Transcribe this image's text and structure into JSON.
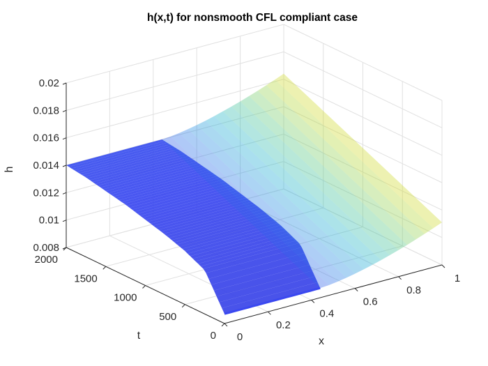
{
  "chart_data": {
    "type": "surface",
    "title": "h(x,t) for nonsmooth CFL compliant case",
    "xlabel": "x",
    "ylabel": "t",
    "zlabel": "h",
    "xlim": [
      0,
      1
    ],
    "ylim": [
      0,
      2000
    ],
    "zlim": [
      0.008,
      0.02
    ],
    "x_ticks": [
      "0",
      "0.2",
      "0.4",
      "0.6",
      "0.8",
      "1"
    ],
    "y_ticks": [
      "0",
      "500",
      "1000",
      "1500",
      "2000"
    ],
    "z_ticks": [
      "0.008",
      "0.01",
      "0.012",
      "0.014",
      "0.016",
      "0.018",
      "0.02"
    ],
    "grid": true,
    "colormap": "parula",
    "face_alpha": "semi-transparent",
    "x": [
      0,
      0.1,
      0.2,
      0.3,
      0.4,
      0.5,
      0.6,
      0.7,
      0.8,
      0.9,
      1.0
    ],
    "t": [
      0,
      250,
      500,
      750,
      1000,
      1250,
      1500,
      1750,
      2000
    ],
    "h_profile_over_t": [
      0.0087,
      0.0112,
      0.0119,
      0.0124,
      0.0128,
      0.0132,
      0.0135,
      0.0138,
      0.014
    ],
    "h_max_at_right_edge": 0.0164,
    "colors": {
      "low": "#3d3af0",
      "mid": "#23b3d8",
      "high": "#b8d935",
      "grid": "#e0e0e0",
      "axis": "#262626"
    }
  }
}
